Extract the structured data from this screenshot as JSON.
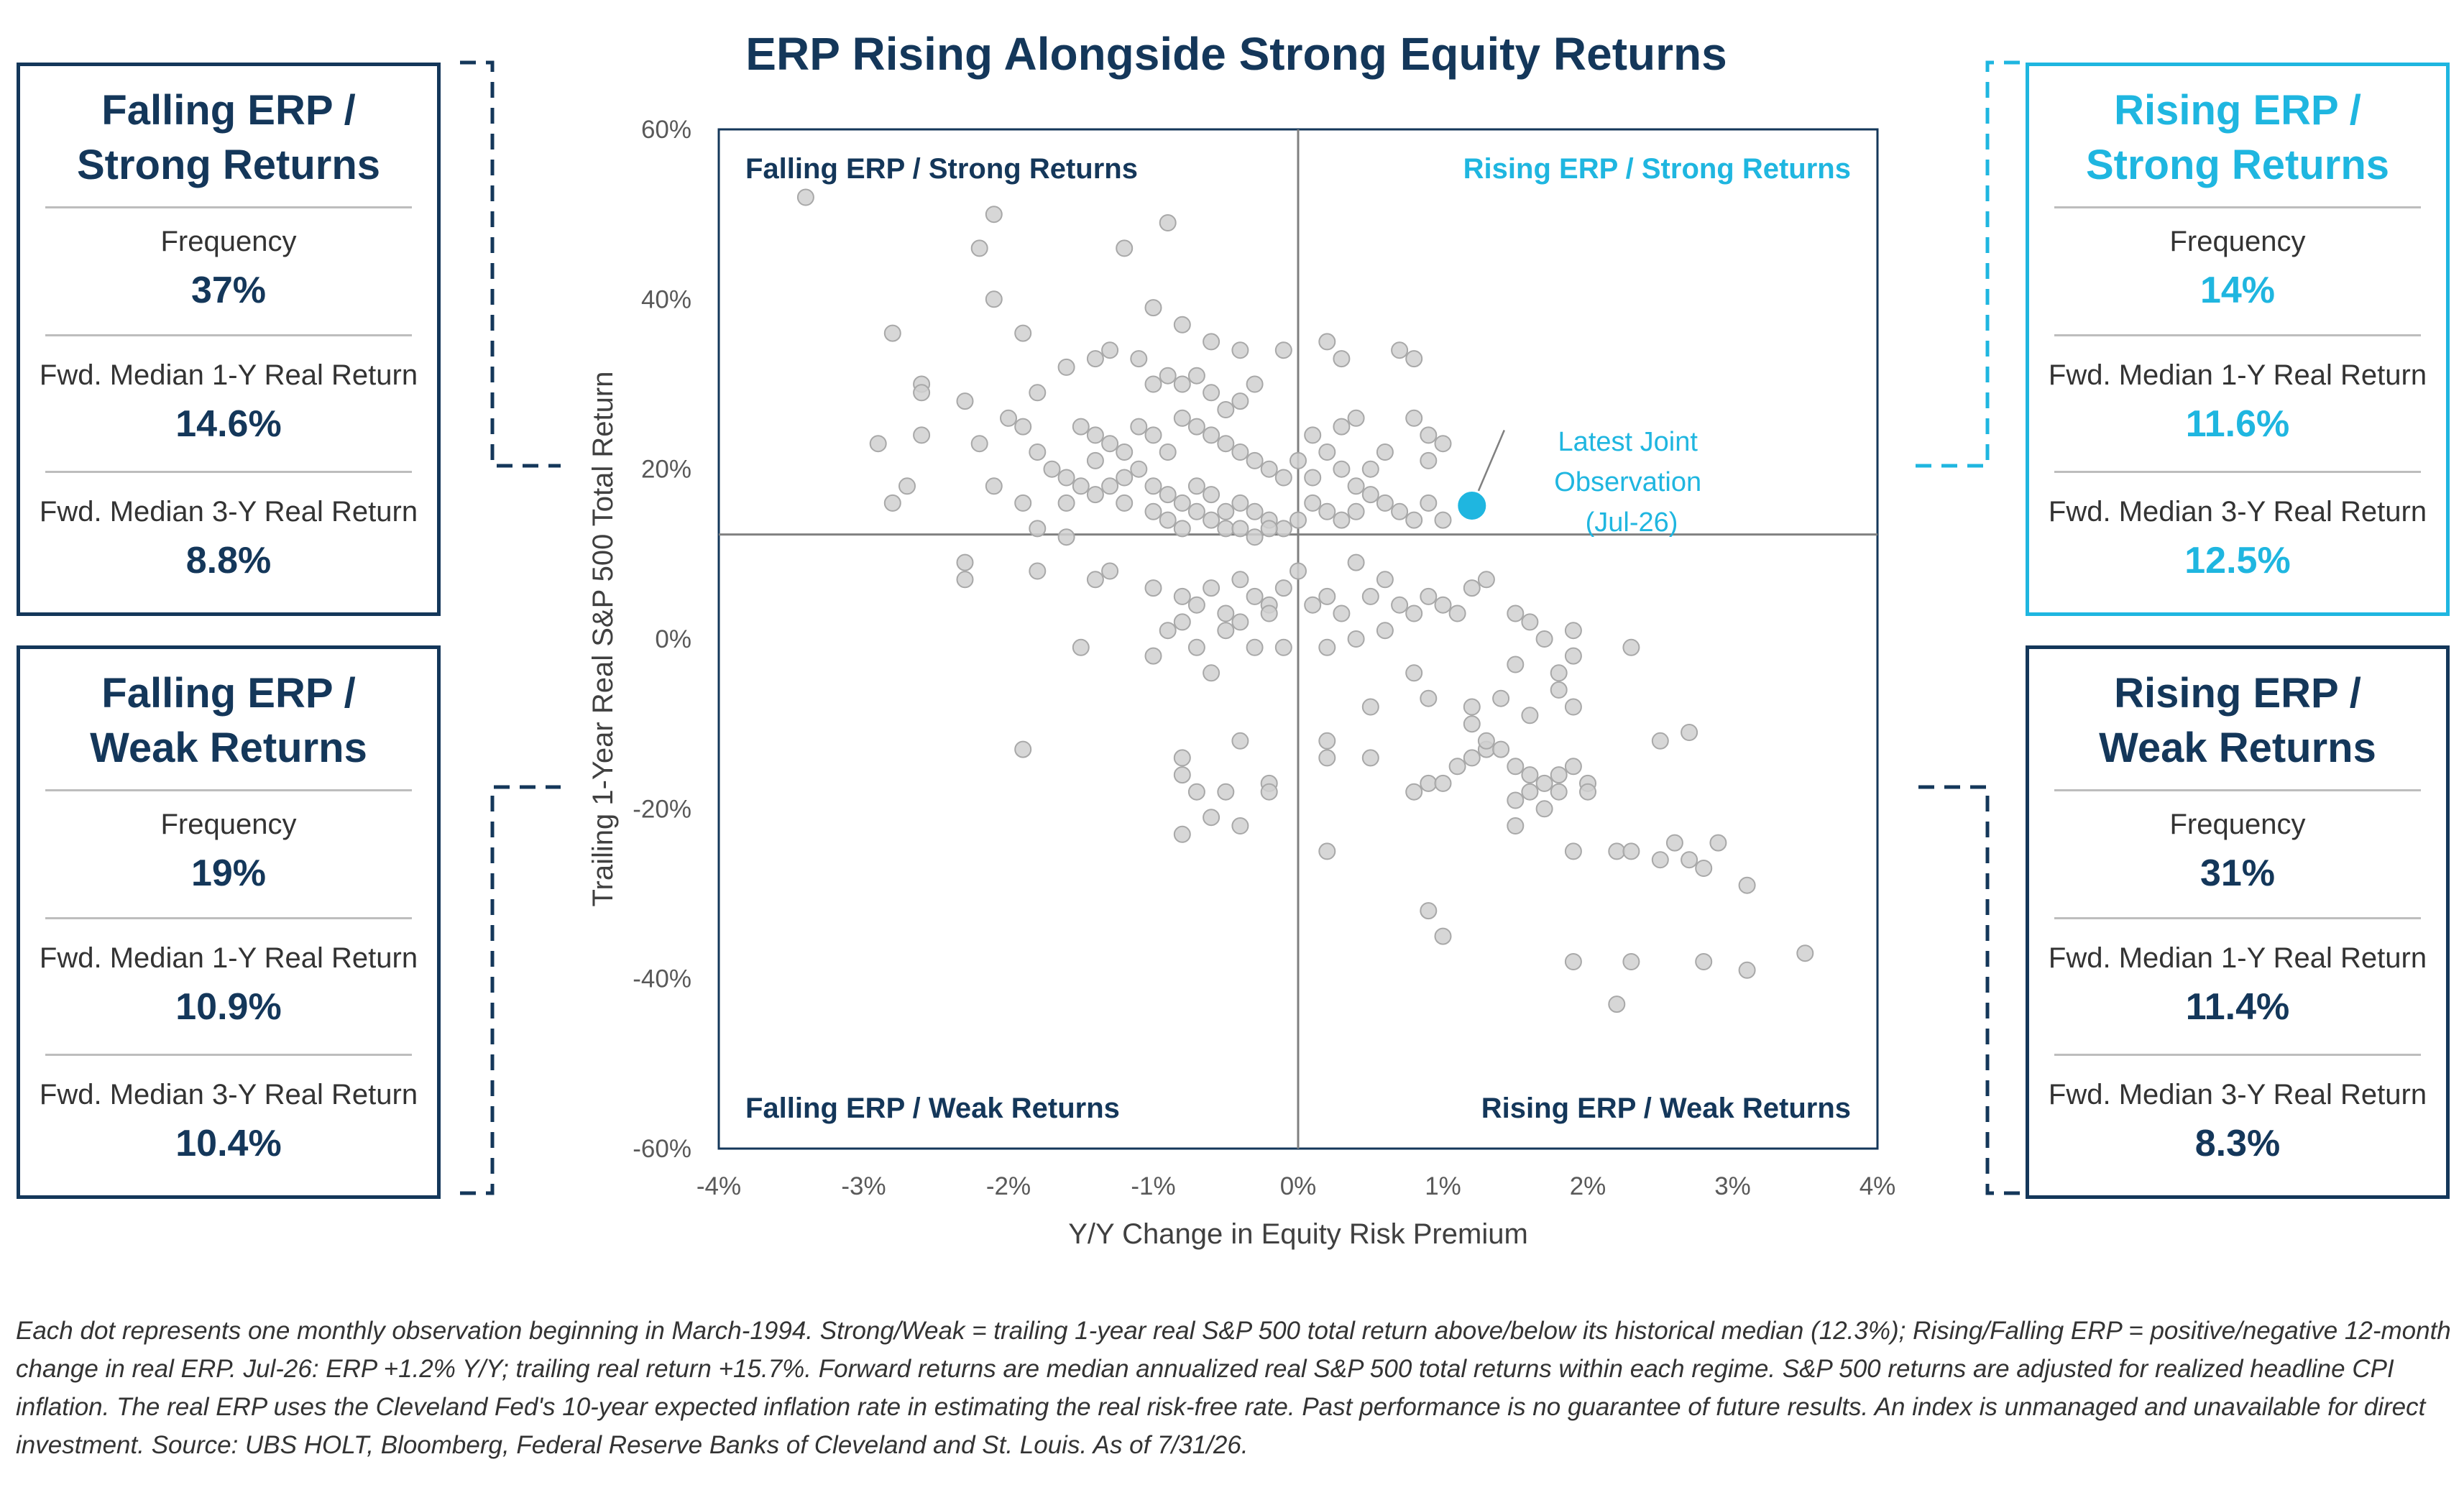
{
  "title": "ERP Rising Alongside Strong Equity Returns",
  "colors": {
    "navy": "#14375a",
    "cyan": "#1fb6e0",
    "dot": "#d0d0d0",
    "dot_stroke": "#a8a8a8",
    "axis_text": "#595959",
    "grid": "#808080"
  },
  "boxes": {
    "falling_strong": {
      "title": [
        "Falling ERP /",
        "Strong Returns"
      ],
      "frequency_label": "Frequency",
      "frequency": "37%",
      "one_year_label": "Fwd. Median 1-Y Real Return",
      "one_year": "14.6%",
      "three_year_label": "Fwd. Median 3-Y Real Return",
      "three_year": "8.8%"
    },
    "falling_weak": {
      "title": [
        "Falling ERP /",
        "Weak Returns"
      ],
      "frequency_label": "Frequency",
      "frequency": "19%",
      "one_year_label": "Fwd. Median 1-Y Real Return",
      "one_year": "10.9%",
      "three_year_label": "Fwd. Median 3-Y Real Return",
      "three_year": "10.4%"
    },
    "rising_strong": {
      "title": [
        "Rising ERP /",
        "Strong Returns"
      ],
      "frequency_label": "Frequency",
      "frequency": "14%",
      "one_year_label": "Fwd. Median 1-Y Real Return",
      "one_year": "11.6%",
      "three_year_label": "Fwd. Median 3-Y Real Return",
      "three_year": "12.5%"
    },
    "rising_weak": {
      "title": [
        "Rising ERP /",
        "Weak Returns"
      ],
      "frequency_label": "Frequency",
      "frequency": "31%",
      "one_year_label": "Fwd. Median 1-Y Real Return",
      "one_year": "11.4%",
      "three_year_label": "Fwd. Median 3-Y Real Return",
      "three_year": "8.3%"
    }
  },
  "footnote": "Each dot represents one monthly observation beginning in March-1994. Strong/Weak = trailing 1-year real S&P 500 total return above/below its historical median (12.3%); Rising/Falling ERP = positive/negative 12-month change in real ERP. Jul-26: ERP +1.2% Y/Y; trailing real return +15.7%. Forward returns are median annualized real S&P 500 total returns within each regime. S&P 500 returns are adjusted for realized headline CPI inflation. The real ERP uses the Cleveland Fed's 10-year expected inflation rate in estimating the real risk-free rate. Past performance is no  guarantee of future results. An index is unmanaged and unavailable for direct investment. Source: UBS HOLT, Bloomberg, Federal Reserve Banks of Cleveland and St. Louis. As of 7/31/26.",
  "chart_data": {
    "type": "scatter",
    "title": "ERP Rising Alongside Strong Equity Returns",
    "xlabel": "Y/Y Change in Equity Risk Premium",
    "ylabel": "Trailing 1-Year Real S&P 500 Total Return",
    "xlim": [
      -4,
      4
    ],
    "ylim": [
      -60,
      60
    ],
    "x_ticks": [
      "-4%",
      "-3%",
      "-2%",
      "-1%",
      "0%",
      "1%",
      "2%",
      "3%",
      "4%"
    ],
    "y_ticks": [
      "-60%",
      "-40%",
      "-20%",
      "0%",
      "20%",
      "40%",
      "60%"
    ],
    "x_tick_values": [
      -4,
      -3,
      -2,
      -1,
      0,
      1,
      2,
      3,
      4
    ],
    "y_tick_values": [
      -60,
      -40,
      -20,
      0,
      20,
      40,
      60
    ],
    "median_return": 12.3,
    "grid": false,
    "quadrant_labels": {
      "top_left": "Falling ERP / Strong Returns",
      "top_right": "Rising ERP / Strong Returns",
      "bottom_left": "Falling ERP / Weak Returns",
      "bottom_right": "Rising ERP / Weak Returns"
    },
    "latest": {
      "label": [
        "Latest Joint",
        "Observation",
        "(Jul-26)"
      ],
      "x": 1.2,
      "y": 15.7
    },
    "series": [
      {
        "points": [
          [
            -3.4,
            52
          ],
          [
            -2.1,
            50
          ],
          [
            -2.2,
            46
          ],
          [
            -1.2,
            46
          ],
          [
            -0.9,
            49
          ],
          [
            -2.1,
            40
          ],
          [
            -2.8,
            36
          ],
          [
            -1.9,
            36
          ],
          [
            -1.0,
            39
          ],
          [
            -0.8,
            37
          ],
          [
            -1.3,
            34
          ],
          [
            -1.4,
            33
          ],
          [
            -1.6,
            32
          ],
          [
            -1.8,
            29
          ],
          [
            -2.6,
            30
          ],
          [
            -2.6,
            29
          ],
          [
            -2.3,
            28
          ],
          [
            -1.1,
            33
          ],
          [
            -0.9,
            31
          ],
          [
            -0.6,
            35
          ],
          [
            -0.4,
            34
          ],
          [
            -0.1,
            34
          ],
          [
            -1.0,
            30
          ],
          [
            -0.8,
            30
          ],
          [
            -0.7,
            31
          ],
          [
            -0.6,
            29
          ],
          [
            -0.5,
            27
          ],
          [
            -0.3,
            30
          ],
          [
            -0.4,
            28
          ],
          [
            -2.0,
            26
          ],
          [
            -1.9,
            25
          ],
          [
            -2.2,
            23
          ],
          [
            -2.9,
            23
          ],
          [
            -2.6,
            24
          ],
          [
            -1.8,
            22
          ],
          [
            -1.5,
            25
          ],
          [
            -1.4,
            24
          ],
          [
            -1.3,
            23
          ],
          [
            -1.2,
            22
          ],
          [
            -1.1,
            25
          ],
          [
            -1.0,
            24
          ],
          [
            -0.9,
            22
          ],
          [
            -0.8,
            26
          ],
          [
            -0.7,
            25
          ],
          [
            -0.6,
            24
          ],
          [
            -0.5,
            23
          ],
          [
            -0.4,
            22
          ],
          [
            -0.3,
            21
          ],
          [
            -0.2,
            20
          ],
          [
            -0.1,
            19
          ],
          [
            -1.7,
            20
          ],
          [
            -1.6,
            19
          ],
          [
            -1.5,
            18
          ],
          [
            -1.4,
            17
          ],
          [
            -1.3,
            18
          ],
          [
            -1.2,
            19
          ],
          [
            -1.1,
            20
          ],
          [
            -1.0,
            18
          ],
          [
            -0.9,
            17
          ],
          [
            -0.8,
            16
          ],
          [
            -0.7,
            18
          ],
          [
            -0.6,
            17
          ],
          [
            -0.5,
            15
          ],
          [
            -0.4,
            16
          ],
          [
            -0.3,
            15
          ],
          [
            -0.2,
            14
          ],
          [
            -0.1,
            13
          ],
          [
            0.0,
            14
          ],
          [
            0.1,
            16
          ],
          [
            0.2,
            15
          ],
          [
            -2.8,
            16
          ],
          [
            -2.7,
            18
          ],
          [
            -2.1,
            18
          ],
          [
            -1.9,
            16
          ],
          [
            -1.8,
            13
          ],
          [
            -1.6,
            16
          ],
          [
            -1.6,
            12
          ],
          [
            -1.4,
            21
          ],
          [
            -1.2,
            16
          ],
          [
            -1.0,
            15
          ],
          [
            -0.9,
            14
          ],
          [
            -0.8,
            13
          ],
          [
            -0.7,
            15
          ],
          [
            -0.6,
            14
          ],
          [
            -0.5,
            13
          ],
          [
            -0.4,
            13
          ],
          [
            -0.3,
            12
          ],
          [
            -0.2,
            13
          ],
          [
            0.0,
            21
          ],
          [
            0.1,
            19
          ],
          [
            0.2,
            22
          ],
          [
            0.3,
            20
          ],
          [
            0.4,
            18
          ],
          [
            0.5,
            17
          ],
          [
            0.6,
            16
          ],
          [
            0.7,
            15
          ],
          [
            0.8,
            14
          ],
          [
            0.9,
            16
          ],
          [
            1.0,
            14
          ],
          [
            0.2,
            35
          ],
          [
            0.3,
            33
          ],
          [
            0.7,
            34
          ],
          [
            0.8,
            33
          ],
          [
            0.8,
            26
          ],
          [
            0.9,
            24
          ],
          [
            1.0,
            23
          ],
          [
            0.4,
            26
          ],
          [
            0.3,
            25
          ],
          [
            0.1,
            24
          ],
          [
            0.6,
            22
          ],
          [
            0.5,
            20
          ],
          [
            0.9,
            21
          ],
          [
            0.4,
            15
          ],
          [
            0.3,
            14
          ],
          [
            -2.3,
            9
          ],
          [
            -2.3,
            7
          ],
          [
            -1.8,
            8
          ],
          [
            -1.3,
            8
          ],
          [
            -1.4,
            7
          ],
          [
            -1.0,
            6
          ],
          [
            -0.8,
            5
          ],
          [
            -0.7,
            4
          ],
          [
            -0.6,
            6
          ],
          [
            -0.5,
            3
          ],
          [
            -0.4,
            7
          ],
          [
            -0.3,
            5
          ],
          [
            -0.2,
            4
          ],
          [
            -0.1,
            6
          ],
          [
            0.0,
            8
          ],
          [
            -0.9,
            1
          ],
          [
            -0.8,
            2
          ],
          [
            -0.7,
            -1
          ],
          [
            -0.5,
            1
          ],
          [
            -0.4,
            2
          ],
          [
            -0.3,
            -1
          ],
          [
            -0.2,
            3
          ],
          [
            -0.1,
            -1
          ],
          [
            -1.0,
            -2
          ],
          [
            -0.6,
            -4
          ],
          [
            -1.5,
            -1
          ],
          [
            0.1,
            4
          ],
          [
            0.2,
            5
          ],
          [
            0.3,
            3
          ],
          [
            0.4,
            9
          ],
          [
            0.5,
            5
          ],
          [
            0.6,
            7
          ],
          [
            0.7,
            4
          ],
          [
            0.8,
            3
          ],
          [
            0.9,
            5
          ],
          [
            1.0,
            4
          ],
          [
            1.1,
            3
          ],
          [
            1.2,
            6
          ],
          [
            1.3,
            7
          ],
          [
            0.4,
            0
          ],
          [
            0.6,
            1
          ],
          [
            0.2,
            -1
          ],
          [
            1.5,
            3
          ],
          [
            1.6,
            2
          ],
          [
            1.7,
            0
          ],
          [
            1.5,
            -3
          ],
          [
            1.9,
            -2
          ],
          [
            1.8,
            -4
          ],
          [
            1.9,
            1
          ],
          [
            0.8,
            -4
          ],
          [
            0.9,
            -7
          ],
          [
            1.2,
            -8
          ],
          [
            1.4,
            -7
          ],
          [
            1.6,
            -9
          ],
          [
            1.8,
            -6
          ],
          [
            1.9,
            -8
          ],
          [
            2.3,
            -1
          ],
          [
            0.5,
            -8
          ],
          [
            1.2,
            -10
          ],
          [
            1.3,
            -13
          ],
          [
            -1.9,
            -13
          ],
          [
            -0.8,
            -14
          ],
          [
            -0.8,
            -16
          ],
          [
            -0.4,
            -12
          ],
          [
            -0.7,
            -18
          ],
          [
            -0.5,
            -18
          ],
          [
            -0.2,
            -17
          ],
          [
            -0.2,
            -18
          ],
          [
            -0.6,
            -21
          ],
          [
            -0.4,
            -22
          ],
          [
            -0.8,
            -23
          ],
          [
            0.2,
            -12
          ],
          [
            0.2,
            -14
          ],
          [
            0.5,
            -14
          ],
          [
            0.9,
            -17
          ],
          [
            0.8,
            -18
          ],
          [
            1.0,
            -17
          ],
          [
            1.1,
            -15
          ],
          [
            1.2,
            -14
          ],
          [
            1.3,
            -12
          ],
          [
            1.4,
            -13
          ],
          [
            1.5,
            -15
          ],
          [
            1.6,
            -16
          ],
          [
            1.7,
            -17
          ],
          [
            1.8,
            -16
          ],
          [
            1.9,
            -15
          ],
          [
            2.0,
            -17
          ],
          [
            1.7,
            -20
          ],
          [
            1.5,
            -22
          ],
          [
            1.6,
            -18
          ],
          [
            1.8,
            -18
          ],
          [
            1.5,
            -19
          ],
          [
            2.0,
            -18
          ],
          [
            1.9,
            -25
          ],
          [
            2.5,
            -12
          ],
          [
            2.7,
            -11
          ],
          [
            2.2,
            -25
          ],
          [
            2.3,
            -25
          ],
          [
            2.5,
            -26
          ],
          [
            2.6,
            -24
          ],
          [
            2.7,
            -26
          ],
          [
            2.8,
            -27
          ],
          [
            2.9,
            -24
          ],
          [
            3.1,
            -29
          ],
          [
            0.2,
            -25
          ],
          [
            0.9,
            -32
          ],
          [
            1.0,
            -35
          ],
          [
            1.9,
            -38
          ],
          [
            2.3,
            -38
          ],
          [
            2.8,
            -38
          ],
          [
            3.1,
            -39
          ],
          [
            3.5,
            -37
          ],
          [
            2.2,
            -43
          ]
        ]
      }
    ]
  }
}
